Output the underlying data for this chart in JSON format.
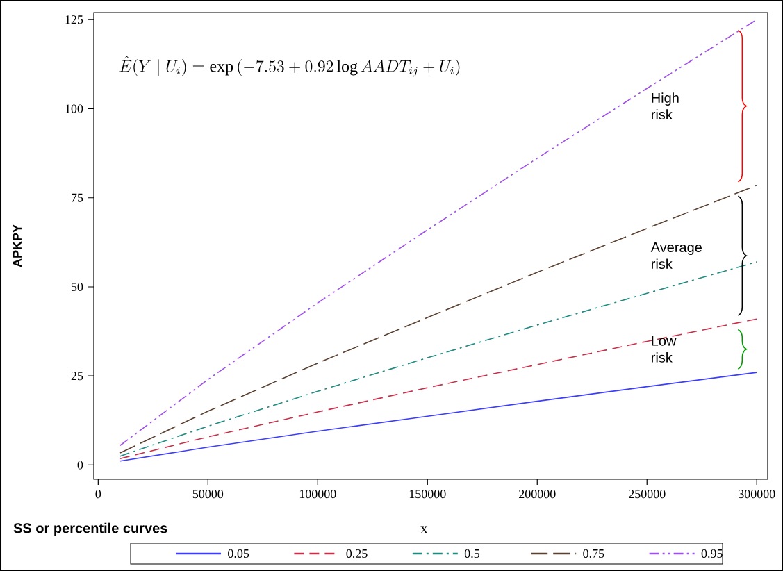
{
  "chart_data": {
    "type": "line",
    "xlabel": "x",
    "ylabel": "APKPY",
    "legend_title": "SS or percentile curves",
    "legend": "bottom",
    "marker": "none",
    "grid": false,
    "x": [
      10000,
      50000,
      100000,
      150000,
      200000,
      250000,
      300000
    ],
    "xlim": [
      -2000,
      305000
    ],
    "ylim": [
      -4,
      127
    ],
    "xticks": [
      0,
      50000,
      100000,
      150000,
      200000,
      250000,
      300000
    ],
    "yticks": [
      0,
      25,
      50,
      75,
      100,
      125
    ],
    "series": [
      {
        "name": "0.05",
        "color": "#3c3cff",
        "line_style": "solid",
        "values": [
          1.1,
          5.0,
          9.5,
          13.7,
          17.9,
          22.0,
          26.0
        ]
      },
      {
        "name": "0.25",
        "color": "#c8304a",
        "line_style": "dashed",
        "values": [
          1.8,
          7.9,
          14.9,
          21.7,
          28.2,
          34.7,
          41.0
        ]
      },
      {
        "name": "0.5",
        "color": "#1e8a80",
        "line_style": "dashdot",
        "values": [
          2.5,
          10.9,
          20.7,
          30.1,
          39.3,
          48.2,
          57.0
        ]
      },
      {
        "name": "0.75",
        "color": "#5a4030",
        "line_style": "longdash",
        "values": [
          3.4,
          15.1,
          28.6,
          41.4,
          54.1,
          66.4,
          78.5
        ]
      },
      {
        "name": "0.95",
        "color": "#a050e8",
        "line_style": "dashdotdot",
        "values": [
          5.5,
          24.0,
          45.5,
          66.0,
          86.1,
          105.7,
          125.0
        ]
      }
    ],
    "annotations": [
      "\\hat{E}(Y\\mid U_{i})=\\exp\\left(-7.53+0.92\\log AADT_{ij}+U_{i}\\right)",
      "High risk",
      "Average risk",
      "Low risk"
    ]
  }
}
